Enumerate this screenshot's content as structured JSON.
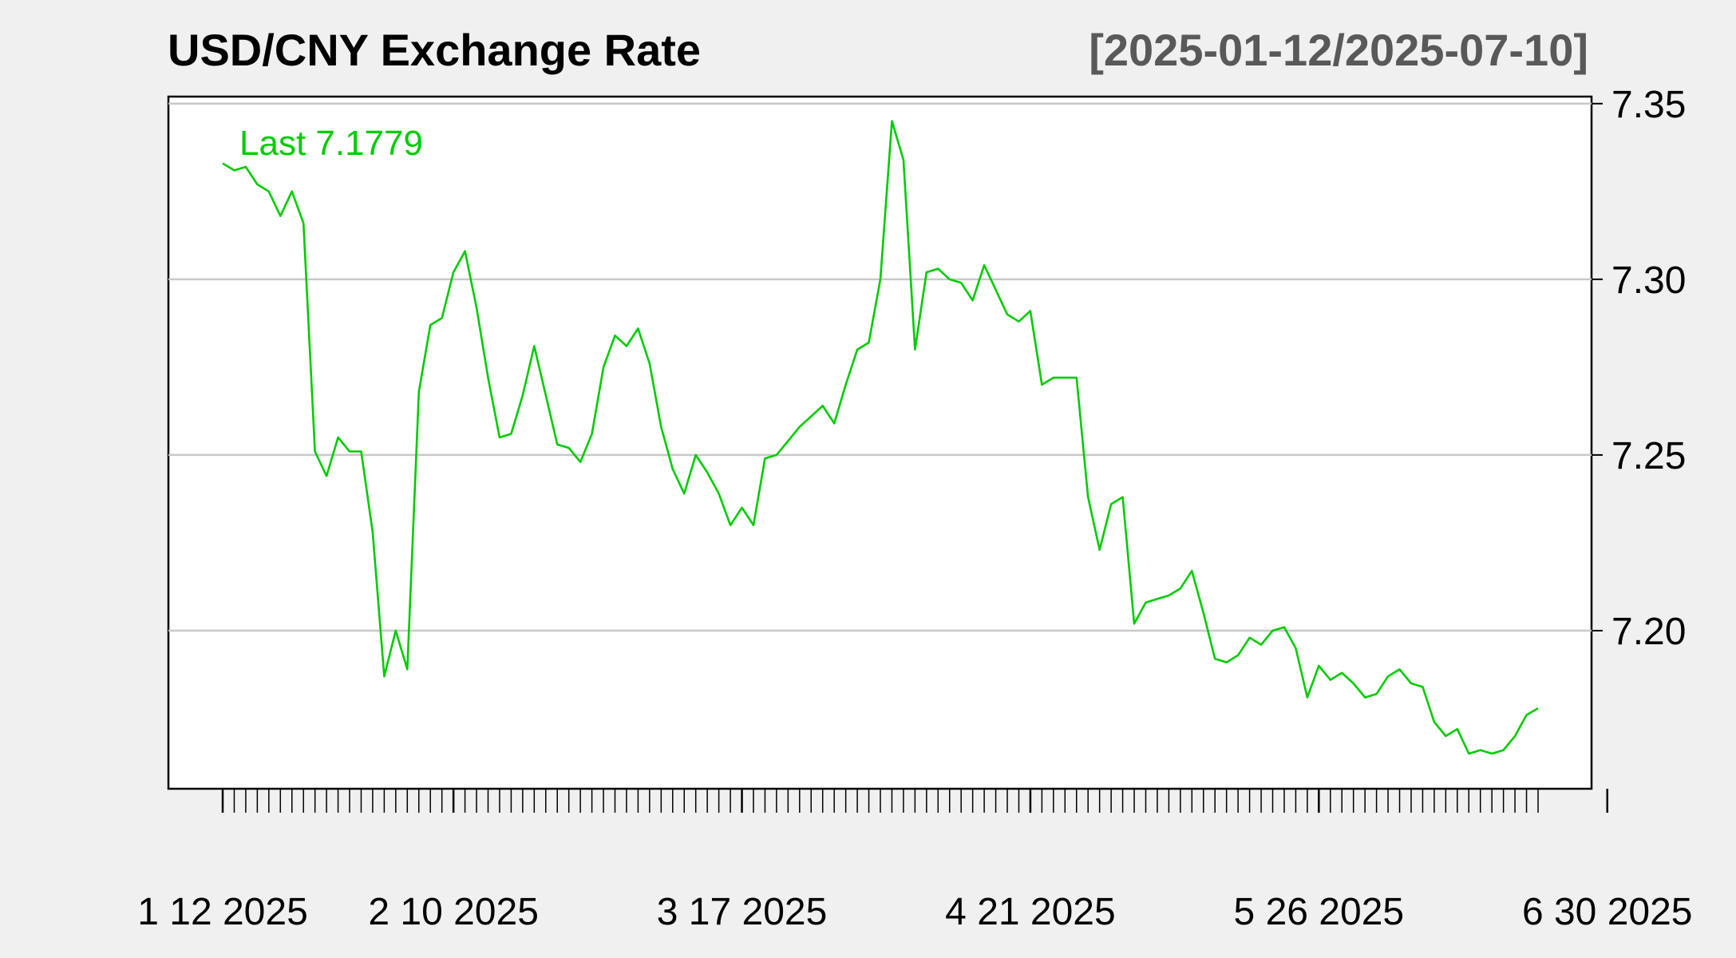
{
  "chart_data": {
    "type": "line",
    "title": "USD/CNY Exchange Rate",
    "date_range": "[2025-01-12/2025-07-10]",
    "last_label": "Last 7.1779",
    "series": [
      {
        "values": [
          7.333,
          7.331,
          7.332,
          7.327,
          7.325,
          7.318,
          7.325,
          7.316,
          7.251,
          7.244,
          7.255,
          7.251,
          7.251,
          7.228,
          7.187,
          7.2,
          7.189,
          7.268,
          7.287,
          7.289,
          7.302,
          7.308,
          7.292,
          7.272,
          7.255,
          7.256,
          7.267,
          7.281,
          7.267,
          7.253,
          7.252,
          7.248,
          7.256,
          7.275,
          7.284,
          7.281,
          7.286,
          7.276,
          7.258,
          7.246,
          7.239,
          7.25,
          7.245,
          7.239,
          7.23,
          7.235,
          7.23,
          7.249,
          7.25,
          7.254,
          7.258,
          7.261,
          7.264,
          7.259,
          7.27,
          7.28,
          7.282,
          7.3,
          7.345,
          7.334,
          7.28,
          7.302,
          7.303,
          7.3,
          7.299,
          7.294,
          7.304,
          7.297,
          7.29,
          7.288,
          7.291,
          7.27,
          7.272,
          7.272,
          7.272,
          7.238,
          7.223,
          7.236,
          7.238,
          7.202,
          7.208,
          7.209,
          7.21,
          7.212,
          7.217,
          7.205,
          7.192,
          7.191,
          7.193,
          7.198,
          7.196,
          7.2,
          7.201,
          7.195,
          7.181,
          7.19,
          7.186,
          7.188,
          7.185,
          7.181,
          7.182,
          7.187,
          7.189,
          7.185,
          7.184,
          7.174,
          7.17,
          7.172,
          7.165,
          7.166,
          7.165,
          7.166,
          7.17,
          7.176,
          7.1779
        ]
      }
    ],
    "ylim": [
      7.155,
      7.352
    ],
    "yticks": [
      7.2,
      7.25,
      7.3,
      7.35
    ],
    "ytick_labels": [
      "7.20",
      "7.25",
      "7.30",
      "7.35"
    ],
    "xticks": [
      {
        "label": "1 12 2025",
        "index": 0
      },
      {
        "label": "2 10 2025",
        "index": 20
      },
      {
        "label": "3 17 2025",
        "index": 45
      },
      {
        "label": "4 21 2025",
        "index": 70
      },
      {
        "label": "5 26 2025",
        "index": 95
      },
      {
        "label": "6 30 2025",
        "index": 120
      }
    ],
    "grid": true,
    "line_color": "#00cc00",
    "grid_color": "#c8c8c8",
    "background": "#f0f0f0",
    "plot_background": "#ffffff"
  }
}
